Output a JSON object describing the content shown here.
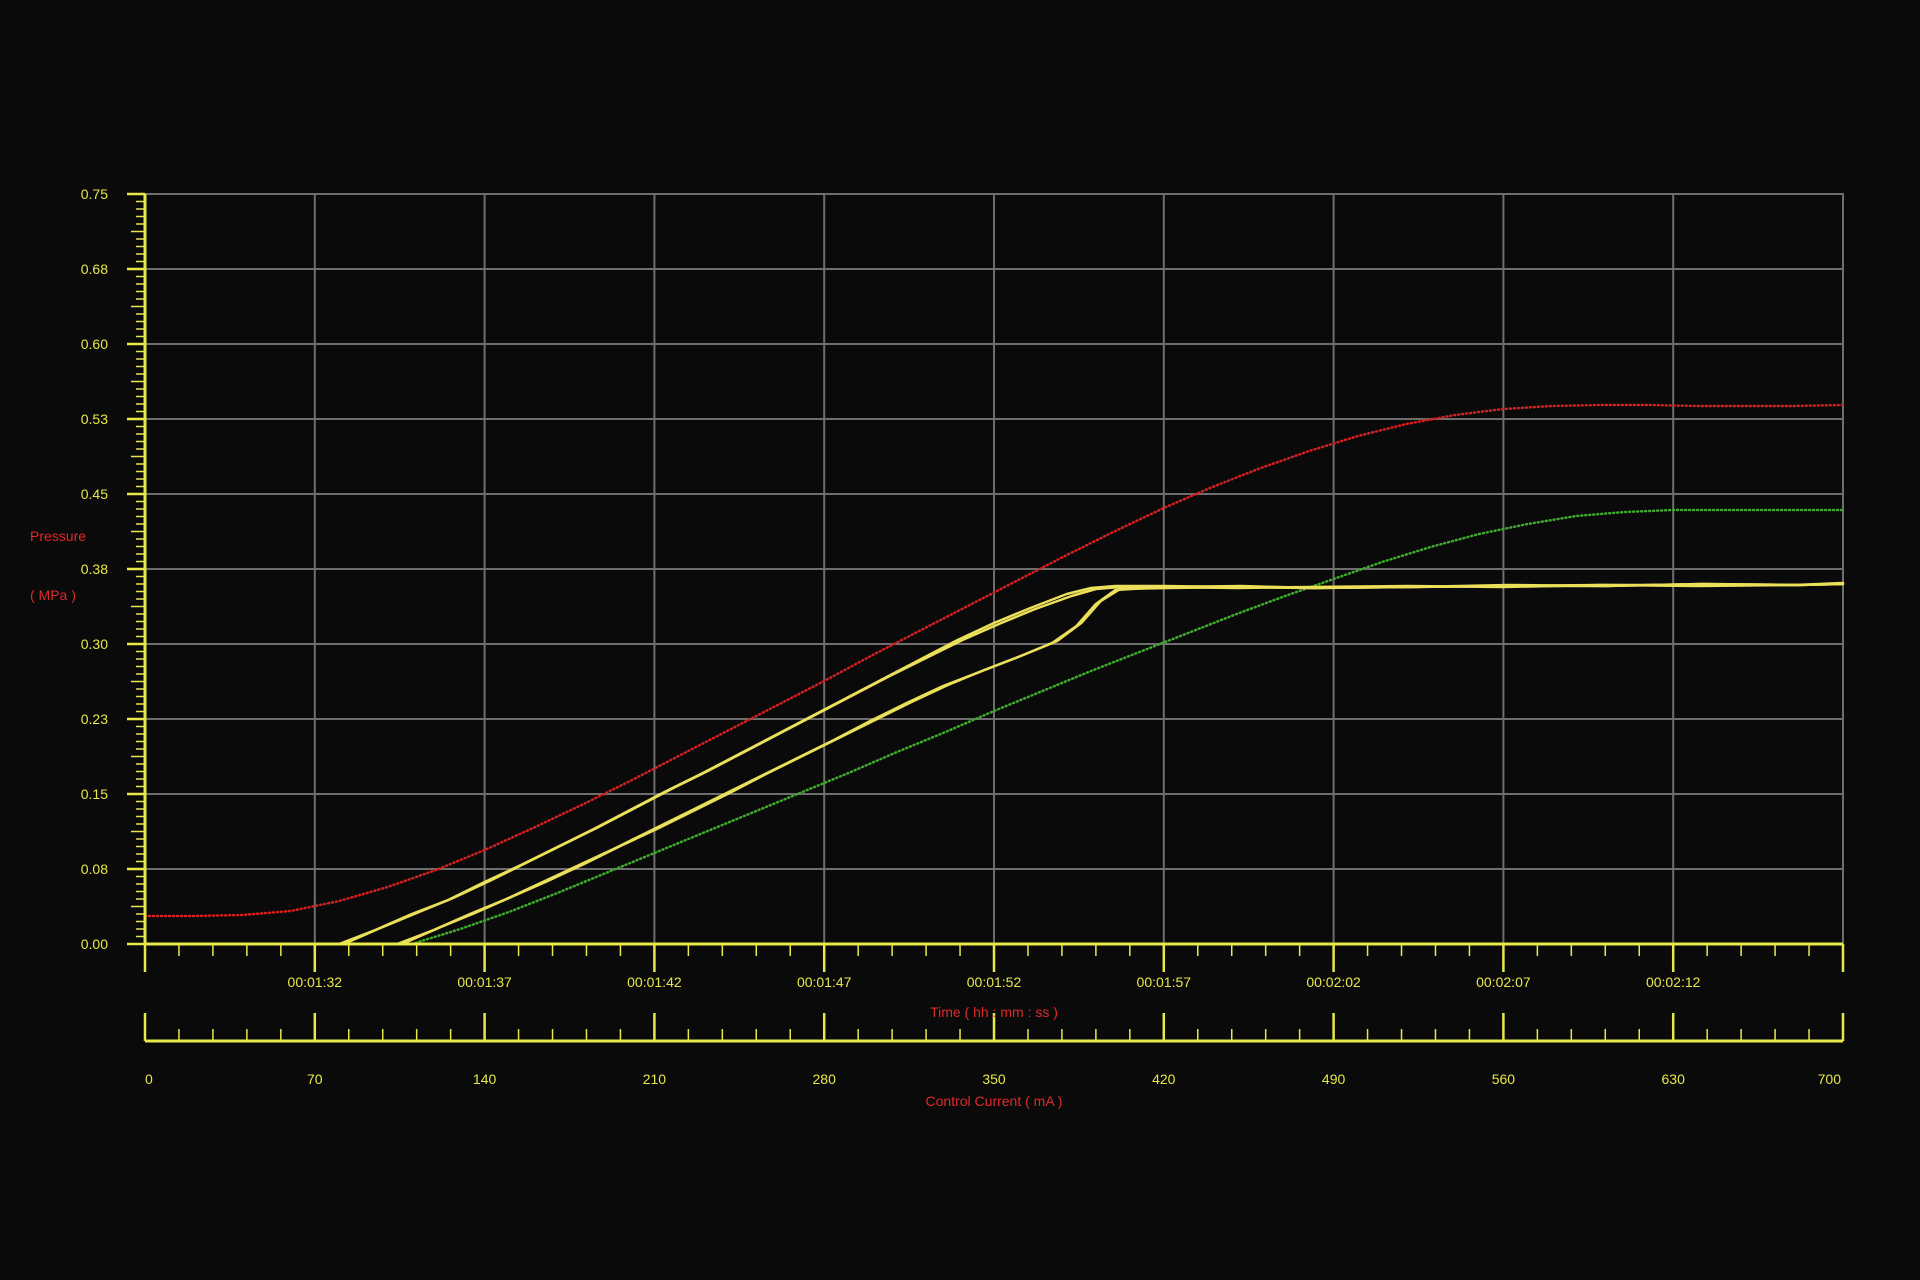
{
  "colors": {
    "background": "#0a0a0a",
    "grid": "#6e6e6e",
    "axis": "#e8e84a",
    "tick_label": "#e8e84a",
    "axis_title": "#e02a2a",
    "series_red": "#d42020",
    "series_green": "#3faa2e",
    "series_yellow": "#ecdf5a"
  },
  "chart_data": {
    "type": "line",
    "title": "",
    "ylabel": "Pressure",
    "yunit": "( MPa )",
    "xlabel": "Time ( hh : mm : ss )",
    "x2label": "Control Current ( mA )",
    "ylim": [
      0,
      0.75
    ],
    "xlim": [
      0,
      700
    ],
    "grid": true,
    "y_ticks": [
      "0.00",
      "0.08",
      "0.15",
      "0.23",
      "0.30",
      "0.38",
      "0.45",
      "0.53",
      "0.60",
      "0.68",
      "0.75"
    ],
    "time_ticks": [
      "00:01:32",
      "00:01:37",
      "00:01:42",
      "00:01:47",
      "00:01:52",
      "00:01:57",
      "00:02:02",
      "00:02:07",
      "00:02:12"
    ],
    "time_tick_positions": [
      70,
      140,
      210,
      280,
      350,
      420,
      490,
      560,
      630
    ],
    "current_ticks": [
      "0",
      "70",
      "140",
      "210",
      "280",
      "350",
      "420",
      "490",
      "560",
      "630",
      "700"
    ],
    "series": [
      {
        "color_key": "series_red",
        "style": "dotted",
        "x": [
          0,
          20,
          40,
          60,
          80,
          100,
          120,
          140,
          160,
          180,
          200,
          220,
          240,
          260,
          280,
          300,
          320,
          340,
          360,
          380,
          400,
          420,
          440,
          460,
          480,
          500,
          520,
          540,
          560,
          580,
          600,
          620,
          640,
          660,
          680,
          700
        ],
        "y": [
          0.028,
          0.028,
          0.029,
          0.033,
          0.043,
          0.057,
          0.074,
          0.094,
          0.116,
          0.139,
          0.163,
          0.188,
          0.213,
          0.238,
          0.263,
          0.289,
          0.314,
          0.339,
          0.364,
          0.389,
          0.413,
          0.436,
          0.457,
          0.476,
          0.493,
          0.508,
          0.52,
          0.529,
          0.535,
          0.538,
          0.539,
          0.539,
          0.538,
          0.538,
          0.538,
          0.539
        ]
      },
      {
        "color_key": "series_green",
        "style": "dotted",
        "x": [
          110,
          130,
          150,
          170,
          190,
          210,
          230,
          250,
          270,
          290,
          310,
          330,
          350,
          370,
          390,
          410,
          430,
          450,
          470,
          490,
          510,
          530,
          550,
          570,
          590,
          610,
          630,
          650,
          670,
          700
        ],
        "y": [
          0.0,
          0.015,
          0.032,
          0.051,
          0.071,
          0.091,
          0.111,
          0.131,
          0.151,
          0.171,
          0.192,
          0.212,
          0.233,
          0.253,
          0.273,
          0.292,
          0.311,
          0.33,
          0.348,
          0.365,
          0.382,
          0.397,
          0.41,
          0.42,
          0.428,
          0.432,
          0.434,
          0.434,
          0.434,
          0.434
        ]
      },
      {
        "color_key": "series_yellow",
        "style": "solid",
        "x": [
          80,
          95,
          110,
          125,
          140,
          155,
          170,
          185,
          200,
          215,
          230,
          245,
          260,
          275,
          290,
          305,
          320,
          335,
          350,
          365,
          380,
          390,
          400,
          420,
          450,
          480,
          520,
          560,
          600,
          640,
          680,
          700
        ],
        "y": [
          0.0,
          0.014,
          0.03,
          0.044,
          0.062,
          0.079,
          0.097,
          0.115,
          0.134,
          0.153,
          0.171,
          0.19,
          0.209,
          0.228,
          0.247,
          0.266,
          0.285,
          0.304,
          0.321,
          0.336,
          0.35,
          0.356,
          0.358,
          0.358,
          0.357,
          0.356,
          0.357,
          0.358,
          0.359,
          0.359,
          0.359,
          0.36
        ]
      },
      {
        "color_key": "series_yellow",
        "style": "solid",
        "x": [
          82,
          97,
          112,
          127,
          142,
          157,
          172,
          187,
          202,
          217,
          232,
          247,
          262,
          277,
          292,
          307,
          322,
          337,
          352,
          367,
          382,
          392,
          402,
          422,
          452,
          482,
          522,
          562,
          602,
          642,
          682,
          700
        ],
        "y": [
          0.0,
          0.016,
          0.031,
          0.046,
          0.063,
          0.081,
          0.099,
          0.117,
          0.136,
          0.155,
          0.173,
          0.192,
          0.211,
          0.23,
          0.249,
          0.268,
          0.286,
          0.304,
          0.32,
          0.335,
          0.348,
          0.355,
          0.357,
          0.357,
          0.358,
          0.356,
          0.357,
          0.359,
          0.358,
          0.36,
          0.359,
          0.36
        ]
      },
      {
        "color_key": "series_yellow",
        "style": "solid",
        "x": [
          104,
          119,
          134,
          149,
          164,
          179,
          194,
          209,
          224,
          239,
          254,
          269,
          284,
          299,
          314,
          329,
          344,
          359,
          374,
          384,
          392,
          400,
          420,
          450,
          480,
          520,
          560,
          600,
          640,
          680,
          700
        ],
        "y": [
          0.0,
          0.014,
          0.03,
          0.045,
          0.062,
          0.079,
          0.096,
          0.114,
          0.132,
          0.15,
          0.168,
          0.186,
          0.204,
          0.223,
          0.241,
          0.258,
          0.272,
          0.286,
          0.301,
          0.318,
          0.34,
          0.354,
          0.357,
          0.356,
          0.357,
          0.358,
          0.357,
          0.359,
          0.358,
          0.359,
          0.361
        ]
      },
      {
        "color_key": "series_yellow",
        "style": "solid",
        "x": [
          106,
          121,
          136,
          151,
          166,
          181,
          196,
          211,
          226,
          241,
          256,
          271,
          286,
          301,
          316,
          331,
          346,
          361,
          376,
          386,
          394,
          402,
          422,
          452,
          482,
          522,
          562,
          602,
          642,
          682,
          700
        ],
        "y": [
          0.0,
          0.016,
          0.031,
          0.047,
          0.063,
          0.08,
          0.098,
          0.115,
          0.133,
          0.151,
          0.17,
          0.188,
          0.206,
          0.224,
          0.242,
          0.259,
          0.274,
          0.288,
          0.303,
          0.321,
          0.343,
          0.355,
          0.356,
          0.357,
          0.356,
          0.357,
          0.358,
          0.358,
          0.36,
          0.359,
          0.36
        ]
      }
    ]
  }
}
